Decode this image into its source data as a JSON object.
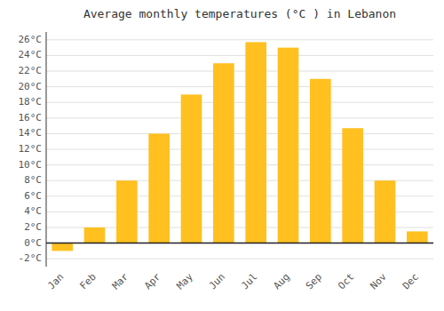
{
  "chart_data": {
    "type": "bar",
    "title": "Average monthly temperatures (°C ) in Lebanon",
    "categories": [
      "Jan",
      "Feb",
      "Mar",
      "Apr",
      "May",
      "Jun",
      "Jul",
      "Aug",
      "Sep",
      "Oct",
      "Nov",
      "Dec"
    ],
    "values": [
      -1.0,
      2.0,
      8.0,
      14.0,
      19.0,
      23.0,
      25.7,
      25.0,
      21.0,
      14.7,
      8.0,
      1.5
    ],
    "color": "#FFC020",
    "ylim": [
      -3,
      27
    ],
    "yticks": [
      {
        "value": -2,
        "label": "-2°C"
      },
      {
        "value": 0,
        "label": "0°C"
      },
      {
        "value": 2,
        "label": "2°C"
      },
      {
        "value": 4,
        "label": "4°C"
      },
      {
        "value": 6,
        "label": "6°C"
      },
      {
        "value": 8,
        "label": "8°C"
      },
      {
        "value": 10,
        "label": "10°C"
      },
      {
        "value": 12,
        "label": "12°C"
      },
      {
        "value": 14,
        "label": "14°C"
      },
      {
        "value": 16,
        "label": "16°C"
      },
      {
        "value": 18,
        "label": "18°C"
      },
      {
        "value": 20,
        "label": "20°C"
      },
      {
        "value": 22,
        "label": "22°C"
      },
      {
        "value": 24,
        "label": "24°C"
      },
      {
        "value": 26,
        "label": "26°C"
      }
    ],
    "grid": true
  }
}
